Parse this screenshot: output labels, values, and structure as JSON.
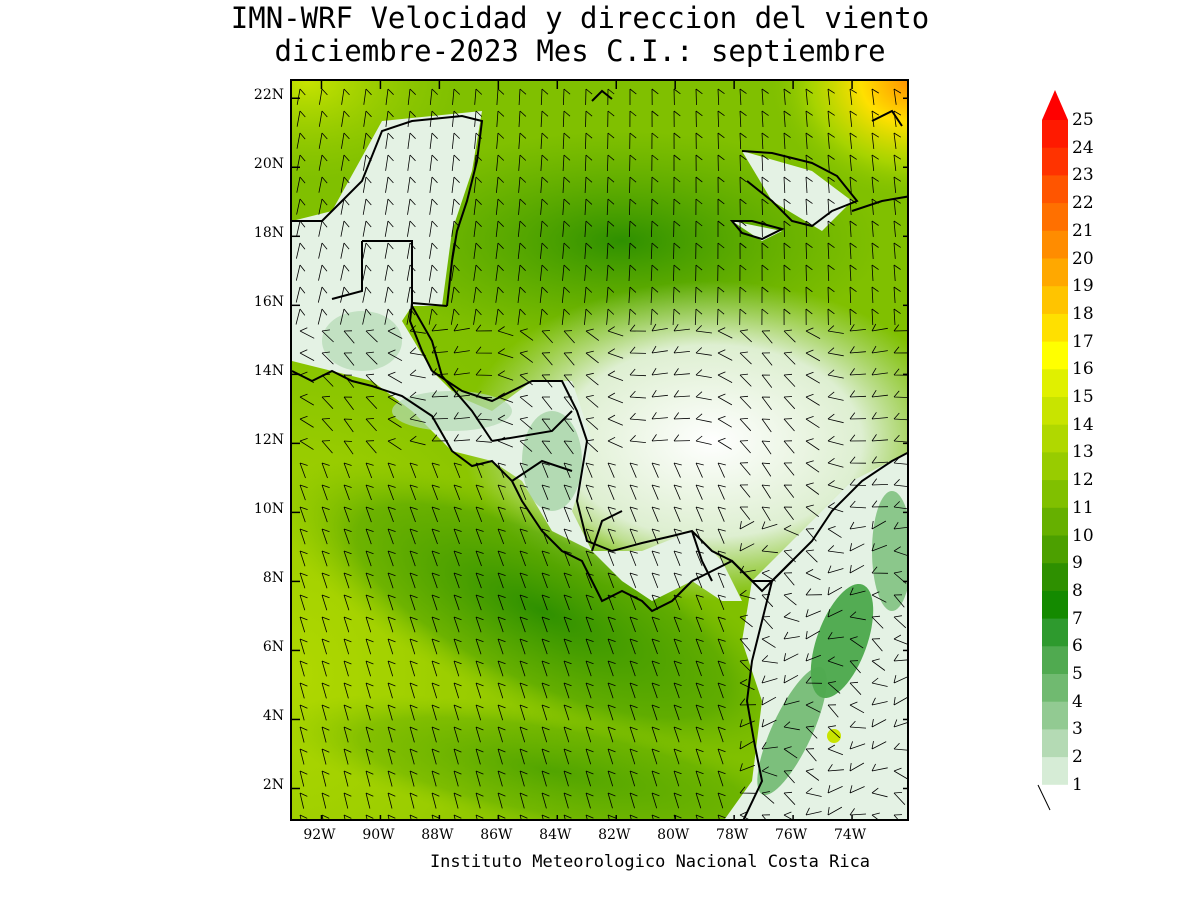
{
  "title": {
    "line1": "IMN-WRF Velocidad y direccion del viento",
    "line2": "diciembre-2023 Mes C.I.: septiembre"
  },
  "credit": "Instituto Meteorologico Nacional Costa Rica",
  "map": {
    "lon_range": [
      -93.0,
      -72.0
    ],
    "lat_range": [
      1.0,
      22.5
    ],
    "lat_ticks": [
      "22N",
      "20N",
      "18N",
      "16N",
      "14N",
      "12N",
      "10N",
      "8N",
      "6N",
      "4N",
      "2N"
    ],
    "lat_values": [
      22,
      20,
      18,
      16,
      14,
      12,
      10,
      8,
      6,
      4,
      2
    ],
    "lon_ticks": [
      "92W",
      "90W",
      "88W",
      "86W",
      "84W",
      "82W",
      "80W",
      "78W",
      "76W",
      "74W"
    ],
    "lon_values": [
      -92,
      -90,
      -88,
      -86,
      -84,
      -82,
      -80,
      -78,
      -76,
      -74
    ]
  },
  "colorbar": {
    "labels": [
      "25",
      "24",
      "23",
      "22",
      "21",
      "20",
      "19",
      "18",
      "17",
      "16",
      "15",
      "14",
      "13",
      "12",
      "11",
      "10",
      "9",
      "8",
      "7",
      "6",
      "5",
      "4",
      "3",
      "2",
      "1"
    ],
    "colors": [
      "#ff1a00",
      "#ff3300",
      "#ff5500",
      "#ff7000",
      "#ff8c00",
      "#ffa800",
      "#ffc400",
      "#ffe000",
      "#ffff00",
      "#e0f000",
      "#c8e400",
      "#b0d800",
      "#98cc00",
      "#80c000",
      "#66b000",
      "#4ca000",
      "#2e9000",
      "#148a00",
      "#2e9a2e",
      "#50aa50",
      "#70ba70",
      "#92ca92",
      "#b4dab4",
      "#d6ecd6",
      "#ffffff"
    ],
    "arrow_color": "#ff0000"
  }
}
